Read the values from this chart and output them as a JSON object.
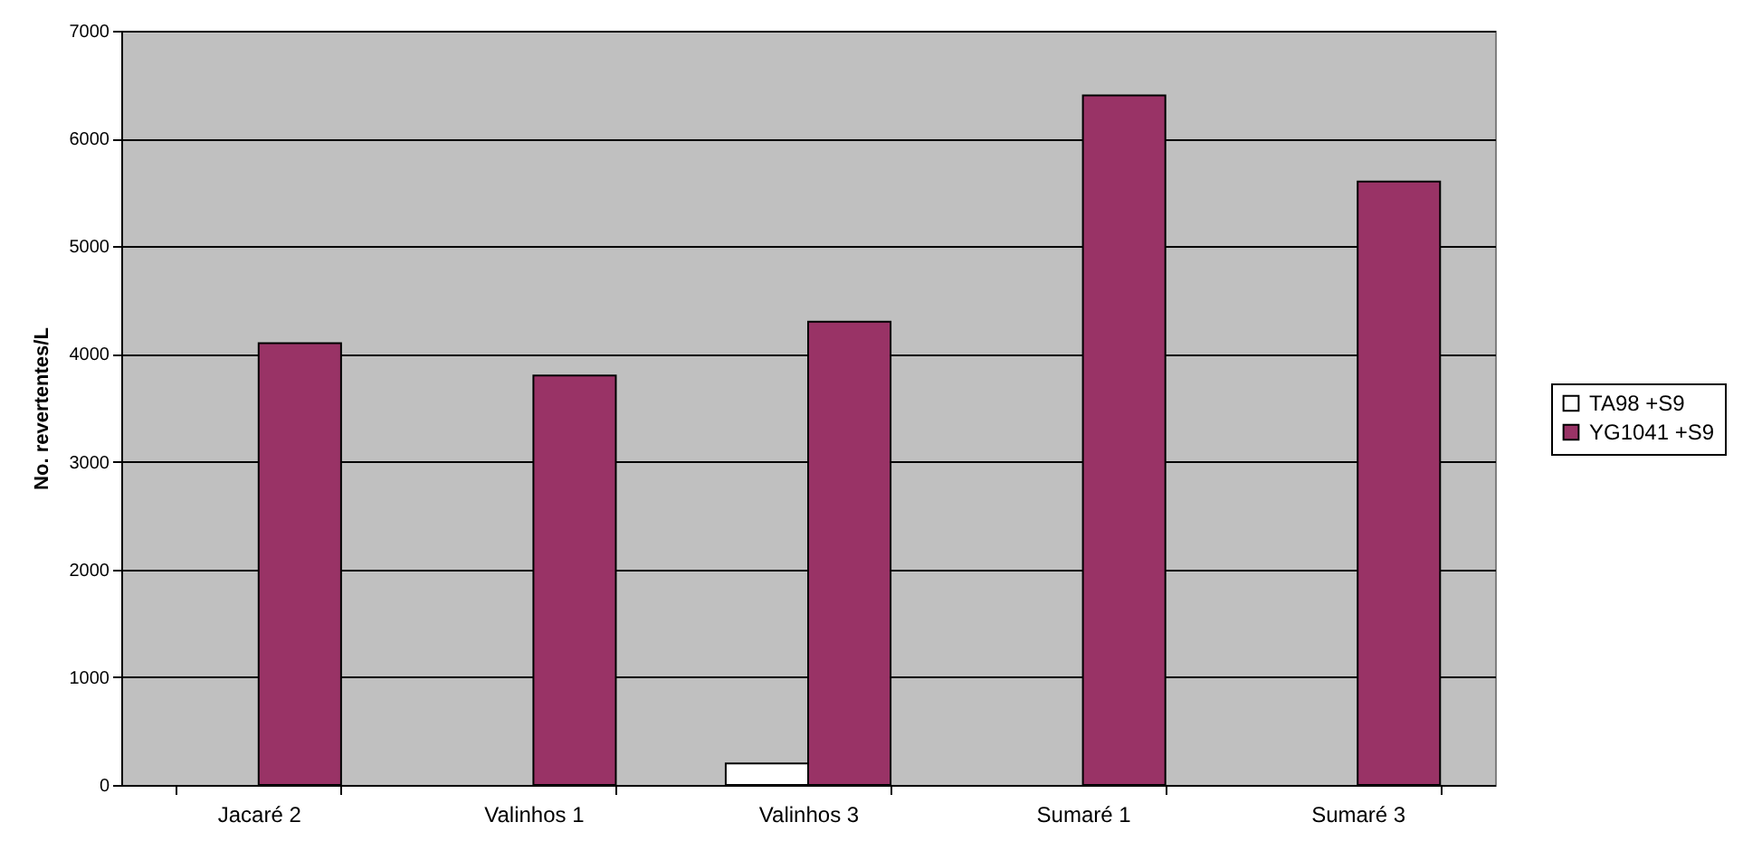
{
  "chart_data": {
    "type": "bar",
    "ylabel": "No. revertentes/L",
    "categories": [
      "Jacaré 2",
      "Valinhos 1",
      "Valinhos 3",
      "Sumaré 1",
      "Sumaré 3"
    ],
    "series": [
      {
        "name": "TA98 +S9",
        "color": "#ffffff",
        "values": [
          null,
          null,
          200,
          null,
          null
        ]
      },
      {
        "name": "YG1041 +S9",
        "color": "#993366",
        "values": [
          4100,
          3800,
          4300,
          6400,
          5600
        ]
      }
    ],
    "ylim": [
      0,
      7000
    ],
    "yticks": [
      0,
      1000,
      2000,
      3000,
      4000,
      5000,
      6000,
      7000
    ],
    "grid": "y",
    "legend": "right"
  }
}
